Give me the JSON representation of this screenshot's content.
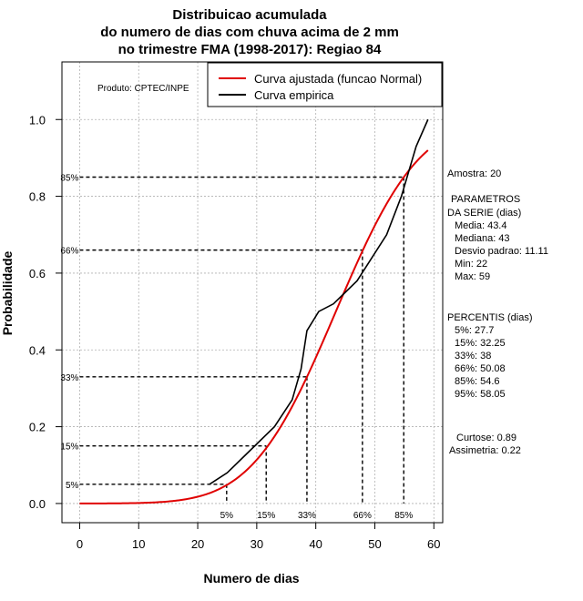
{
  "chart_data": {
    "type": "line",
    "title_lines": [
      "Distribuicao acumulada",
      "do numero de dias com chuva acima de 2 mm",
      "no trimestre FMA (1998-2017): Regiao 84"
    ],
    "xlabel": "Numero de dias",
    "ylabel": "Probabilidade",
    "xlim": [
      -3,
      61.5
    ],
    "ylim": [
      -0.05,
      1.15
    ],
    "x_ticks": [
      0,
      10,
      20,
      30,
      40,
      50,
      60
    ],
    "y_ticks": [
      0.0,
      0.2,
      0.4,
      0.6,
      0.8,
      1.0
    ],
    "y_tick_labels": [
      "0.0",
      "0.2",
      "0.4",
      "0.6",
      "0.8",
      "1.0"
    ],
    "grid": true,
    "producer_note": "Produto: CPTEC/INPE",
    "legend": {
      "placement": "top-right",
      "entries": [
        {
          "label": "Curva ajustada (funcao Normal)",
          "color": "#e00000"
        },
        {
          "label": "Curva empirica",
          "color": "#000000"
        }
      ]
    },
    "series": [
      {
        "name": "Curva ajustada (funcao Normal)",
        "kind": "normal_cdf",
        "mean": 43.4,
        "sd": 11.11,
        "x_range": [
          0,
          59
        ],
        "color": "#e00000"
      },
      {
        "name": "Curva empirica",
        "color": "#000000",
        "x": [
          22,
          25,
          29,
          33,
          36,
          37.5,
          38.5,
          40.5,
          43,
          45,
          47,
          49.5,
          52,
          54.5,
          57,
          59
        ],
        "y": [
          0.05,
          0.08,
          0.14,
          0.2,
          0.27,
          0.35,
          0.45,
          0.5,
          0.52,
          0.55,
          0.58,
          0.64,
          0.7,
          0.8,
          0.93,
          1.0
        ]
      }
    ],
    "percentile_lines": [
      {
        "label": "5%",
        "p": 0.05,
        "x": 24.9
      },
      {
        "label": "15%",
        "p": 0.15,
        "x": 31.6
      },
      {
        "label": "33%",
        "p": 0.33,
        "x": 38.5
      },
      {
        "label": "66%",
        "p": 0.66,
        "x": 47.9
      },
      {
        "label": "85%",
        "p": 0.85,
        "x": 54.9
      }
    ],
    "stats": {
      "sample": "Amostra: 20",
      "params_title_1": "PARAMETROS",
      "params_title_2": "DA SERIE (dias)",
      "media": "Media: 43.4",
      "mediana": "Mediana: 43",
      "desvio": "Desvio padrao: 11.11",
      "min": "Min: 22",
      "max": "Max: 59",
      "percentis_title": "PERCENTIS (dias)",
      "p5": "5%: 27.7",
      "p15": "15%: 32.25",
      "p33": "33%: 38",
      "p66": "66%: 50.08",
      "p85": "85%: 54.6",
      "p95": "95%: 58.05",
      "curtose": "Curtose: 0.89",
      "assimetria": "Assimetria: 0.22"
    }
  }
}
